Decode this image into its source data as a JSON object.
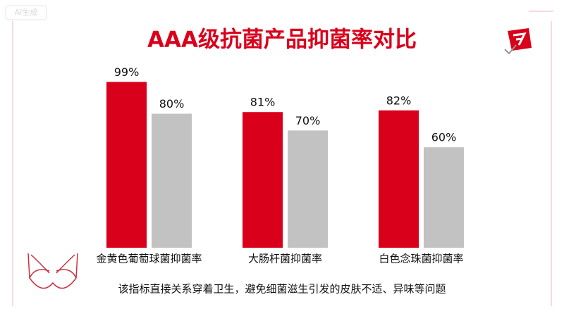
{
  "chart_data": {
    "type": "bar",
    "title": "AAA级抗菌产品抑菌率对比",
    "watermark": "AI生成",
    "caption": "该指标直接关系穿着卫生，避免细菌滋生引发的皮肤不适、异味等问题",
    "categories": [
      "金黄色葡萄球菌抑菌率",
      "大肠杆菌抑菌率",
      "白色念珠菌抑菌率"
    ],
    "series": [
      {
        "color": "#d9001b",
        "values": [
          99,
          81,
          82
        ],
        "value_labels": [
          "99%",
          "81%",
          "82%"
        ]
      },
      {
        "color": "#c2c2c2",
        "values": [
          80,
          70,
          60
        ],
        "value_labels": [
          "80%",
          "70%",
          "60%"
        ]
      }
    ],
    "ylim": [
      0,
      100
    ]
  }
}
